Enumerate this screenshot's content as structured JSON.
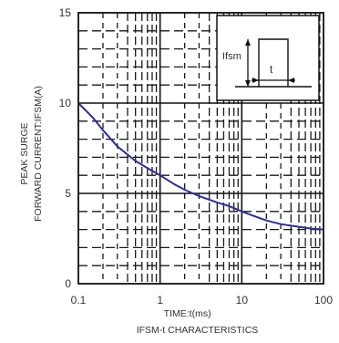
{
  "chart_data": {
    "type": "line",
    "title": "IFSM-t CHARACTERISTICS",
    "xlabel": "TIME:t(ms)",
    "ylabel_lines": [
      "PEAK SURGE",
      "FORWARD CURRENT:IFSM(A)"
    ],
    "x_scale": "log",
    "xlim": [
      0.1,
      100
    ],
    "ylim": [
      0,
      15
    ],
    "x_ticks": [
      {
        "value": 0.1,
        "label": "0.1"
      },
      {
        "value": 1,
        "label": "1"
      },
      {
        "value": 10,
        "label": "10"
      },
      {
        "value": 100,
        "label": "100"
      }
    ],
    "y_ticks": [
      {
        "value": 0,
        "label": "0"
      },
      {
        "value": 5,
        "label": "5"
      },
      {
        "value": 10,
        "label": "10"
      },
      {
        "value": 15,
        "label": "15"
      }
    ],
    "grid": "dashed minor, solid major",
    "series": [
      {
        "color": "#2b2f9a",
        "points": [
          [
            0.1,
            10.0
          ],
          [
            0.15,
            9.2
          ],
          [
            0.2,
            8.5
          ],
          [
            0.3,
            7.6
          ],
          [
            0.5,
            6.8
          ],
          [
            0.7,
            6.4
          ],
          [
            1,
            6.0
          ],
          [
            1.5,
            5.5
          ],
          [
            2,
            5.2
          ],
          [
            3,
            4.85
          ],
          [
            5,
            4.5
          ],
          [
            7,
            4.3
          ],
          [
            10,
            4.0
          ],
          [
            15,
            3.7
          ],
          [
            20,
            3.5
          ],
          [
            30,
            3.3
          ],
          [
            50,
            3.15
          ],
          [
            70,
            3.05
          ],
          [
            100,
            3.0
          ]
        ]
      }
    ],
    "inset": {
      "label_ifsm": "Ifsm",
      "label_t": "t"
    }
  }
}
